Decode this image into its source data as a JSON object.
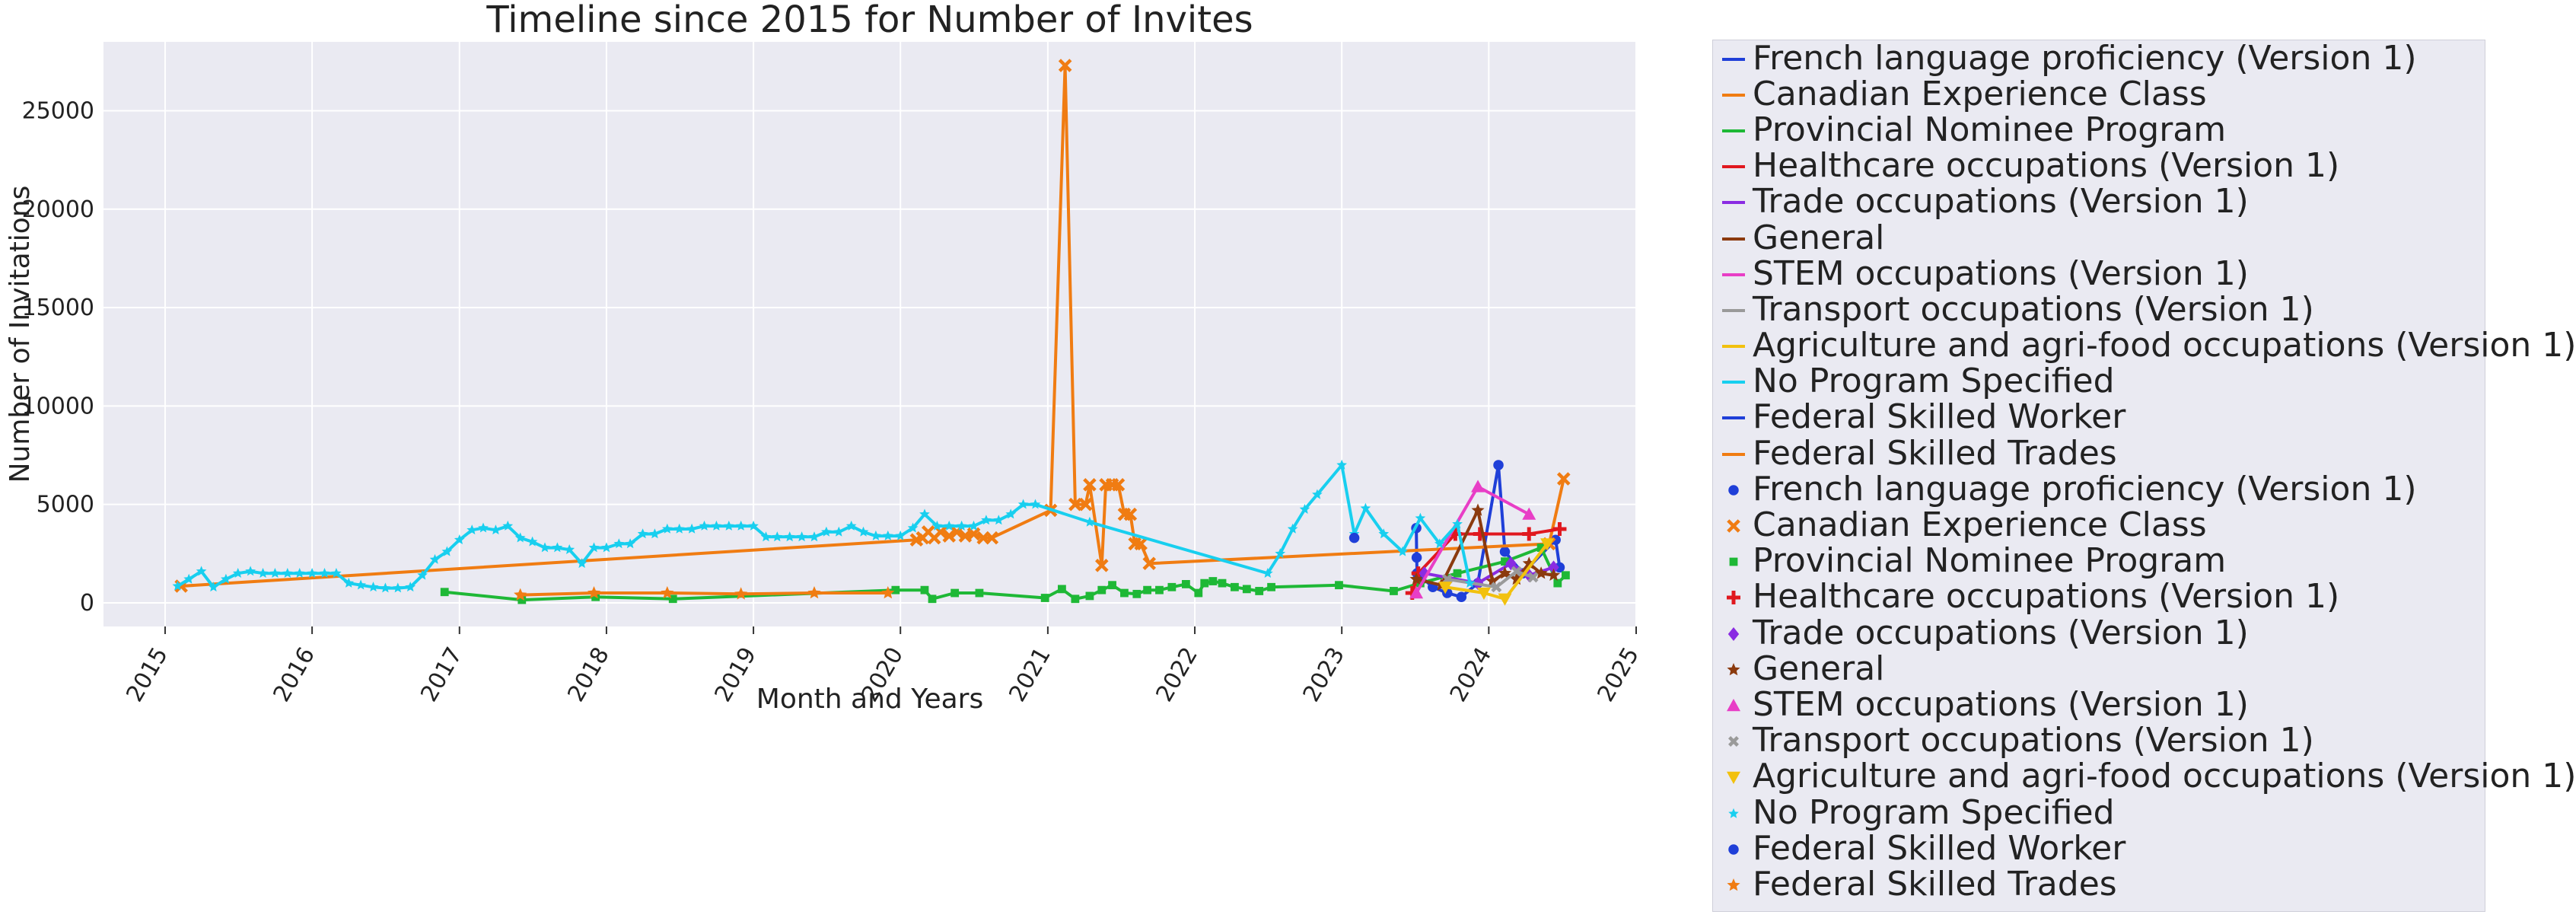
{
  "chart_data": {
    "type": "line",
    "title": "Timeline since 2015 for Number of Invites",
    "xlabel": "Month and Years",
    "ylabel": "Number of Invitations",
    "xlim": [
      "2014-08-01",
      "2025-01-01"
    ],
    "ylim": [
      -1200,
      28500
    ],
    "x_ticks": [
      "2015",
      "2016",
      "2017",
      "2018",
      "2019",
      "2020",
      "2021",
      "2022",
      "2023",
      "2024",
      "2025"
    ],
    "y_ticks": [
      0,
      5000,
      10000,
      15000,
      20000,
      25000
    ],
    "grid": true,
    "legend_placement": "outside right",
    "series": [
      {
        "name": "French language proficiency (Version 1)",
        "color": "#1f3fd8",
        "marker": "circle",
        "points": [
          [
            "2023-07-05",
            3800
          ],
          [
            "2023-07-06",
            2300
          ],
          [
            "2023-07-07",
            1500
          ],
          [
            "2023-08-15",
            800
          ],
          [
            "2023-09-20",
            500
          ],
          [
            "2023-10-25",
            300
          ],
          [
            "2023-12-05",
            1000
          ],
          [
            "2024-01-25",
            7000
          ],
          [
            "2024-02-10",
            2600
          ],
          [
            "2024-03-25",
            1500
          ],
          [
            "2024-06-15",
            3200
          ],
          [
            "2024-06-25",
            1800
          ]
        ]
      },
      {
        "name": "Canadian Experience Class",
        "color": "#f07c12",
        "marker": "x",
        "points": [
          [
            "2015-02-10",
            850
          ],
          [
            "2020-02-10",
            3200
          ],
          [
            "2020-02-25",
            3300
          ],
          [
            "2020-03-10",
            3600
          ],
          [
            "2020-03-25",
            3300
          ],
          [
            "2020-04-10",
            3600
          ],
          [
            "2020-05-01",
            3400
          ],
          [
            "2020-05-20",
            3600
          ],
          [
            "2020-06-10",
            3400
          ],
          [
            "2020-07-01",
            3500
          ],
          [
            "2020-07-25",
            3300
          ],
          [
            "2020-08-15",
            3300
          ],
          [
            "2021-01-08",
            4700
          ],
          [
            "2021-02-13",
            27300
          ],
          [
            "2021-03-10",
            5000
          ],
          [
            "2021-04-05",
            5000
          ],
          [
            "2021-04-15",
            6000
          ],
          [
            "2021-05-15",
            1900
          ],
          [
            "2021-05-25",
            6000
          ],
          [
            "2021-06-10",
            6000
          ],
          [
            "2021-06-25",
            6000
          ],
          [
            "2021-07-10",
            4500
          ],
          [
            "2021-07-25",
            4500
          ],
          [
            "2021-08-05",
            3000
          ],
          [
            "2021-08-20",
            3000
          ],
          [
            "2021-09-10",
            2000
          ],
          [
            "2024-05-30",
            3000
          ],
          [
            "2024-07-05",
            6300
          ]
        ]
      },
      {
        "name": "Provincial Nominee Program",
        "color": "#1eb836",
        "marker": "square",
        "points": [
          [
            "2016-11-25",
            550
          ],
          [
            "2017-06-05",
            150
          ],
          [
            "2017-12-05",
            300
          ],
          [
            "2018-06-15",
            200
          ],
          [
            "2019-12-20",
            650
          ],
          [
            "2020-03-01",
            650
          ],
          [
            "2020-03-20",
            200
          ],
          [
            "2020-05-15",
            500
          ],
          [
            "2020-07-15",
            500
          ],
          [
            "2020-12-25",
            250
          ],
          [
            "2021-02-05",
            700
          ],
          [
            "2021-03-10",
            200
          ],
          [
            "2021-04-15",
            350
          ],
          [
            "2021-05-15",
            650
          ],
          [
            "2021-06-10",
            900
          ],
          [
            "2021-07-10",
            500
          ],
          [
            "2021-08-10",
            450
          ],
          [
            "2021-09-05",
            650
          ],
          [
            "2021-10-05",
            650
          ],
          [
            "2021-11-05",
            800
          ],
          [
            "2021-12-10",
            950
          ],
          [
            "2022-01-10",
            500
          ],
          [
            "2022-01-25",
            1000
          ],
          [
            "2022-02-15",
            1100
          ],
          [
            "2022-03-10",
            1000
          ],
          [
            "2022-04-10",
            800
          ],
          [
            "2022-05-10",
            700
          ],
          [
            "2022-06-10",
            600
          ],
          [
            "2022-07-10",
            800
          ],
          [
            "2022-12-25",
            900
          ],
          [
            "2023-05-10",
            600
          ],
          [
            "2023-07-15",
            1000
          ],
          [
            "2023-10-15",
            1500
          ],
          [
            "2024-02-10",
            2100
          ],
          [
            "2024-05-10",
            2800
          ],
          [
            "2024-06-20",
            1000
          ],
          [
            "2024-07-10",
            1400
          ]
        ]
      },
      {
        "name": "Healthcare occupations (Version 1)",
        "color": "#e0181f",
        "marker": "plus",
        "points": [
          [
            "2023-06-25",
            500
          ],
          [
            "2023-07-10",
            1500
          ],
          [
            "2023-10-10",
            3500
          ],
          [
            "2023-12-10",
            3500
          ],
          [
            "2024-04-10",
            3500
          ],
          [
            "2024-06-25",
            3750
          ]
        ]
      },
      {
        "name": "Trade occupations (Version 1)",
        "color": "#8a2be2",
        "marker": "diamond",
        "points": [
          [
            "2023-07-25",
            1500
          ],
          [
            "2023-12-05",
            1000
          ],
          [
            "2024-02-25",
            2000
          ],
          [
            "2024-04-10",
            1400
          ],
          [
            "2024-06-10",
            1800
          ]
        ]
      },
      {
        "name": "General",
        "color": "#8b3a0e",
        "marker": "star",
        "points": [
          [
            "2023-07-05",
            1200
          ],
          [
            "2023-09-05",
            900
          ],
          [
            "2023-12-05",
            4700
          ],
          [
            "2024-01-10",
            1100
          ],
          [
            "2024-02-10",
            1500
          ],
          [
            "2024-03-10",
            1200
          ],
          [
            "2024-04-10",
            2000
          ],
          [
            "2024-05-10",
            1500
          ],
          [
            "2024-06-10",
            1400
          ]
        ]
      },
      {
        "name": "STEM occupations (Version 1)",
        "color": "#e83ec6",
        "marker": "triangle-up",
        "points": [
          [
            "2023-07-05",
            500
          ],
          [
            "2023-12-05",
            5900
          ],
          [
            "2024-04-10",
            4500
          ]
        ]
      },
      {
        "name": "Transport occupations (Version 1)",
        "color": "#9a9a9a",
        "marker": "x-small",
        "points": [
          [
            "2023-09-20",
            1200
          ],
          [
            "2024-01-20",
            800
          ],
          [
            "2024-03-10",
            1600
          ],
          [
            "2024-04-20",
            1300
          ]
        ]
      },
      {
        "name": "Agriculture and agri-food occupations (Version 1)",
        "color": "#f2c10e",
        "marker": "triangle-down",
        "points": [
          [
            "2023-09-15",
            800
          ],
          [
            "2023-12-20",
            500
          ],
          [
            "2024-02-10",
            200
          ],
          [
            "2024-05-25",
            3000
          ]
        ]
      },
      {
        "name": "No Program Specified",
        "color": "#18cfef",
        "marker": "star-small",
        "points": [
          [
            "2015-02-01",
            850
          ],
          [
            "2015-03-01",
            1200
          ],
          [
            "2015-04-01",
            1600
          ],
          [
            "2015-05-01",
            800
          ],
          [
            "2015-06-01",
            1200
          ],
          [
            "2015-07-01",
            1500
          ],
          [
            "2015-08-01",
            1600
          ],
          [
            "2015-09-01",
            1500
          ],
          [
            "2015-10-01",
            1500
          ],
          [
            "2015-11-01",
            1500
          ],
          [
            "2015-12-01",
            1500
          ],
          [
            "2016-01-01",
            1500
          ],
          [
            "2016-02-01",
            1500
          ],
          [
            "2016-03-01",
            1500
          ],
          [
            "2016-04-01",
            1000
          ],
          [
            "2016-05-01",
            900
          ],
          [
            "2016-06-01",
            800
          ],
          [
            "2016-07-01",
            750
          ],
          [
            "2016-08-01",
            750
          ],
          [
            "2016-09-01",
            800
          ],
          [
            "2016-10-01",
            1400
          ],
          [
            "2016-11-01",
            2200
          ],
          [
            "2016-12-01",
            2600
          ],
          [
            "2017-01-01",
            3200
          ],
          [
            "2017-02-01",
            3700
          ],
          [
            "2017-03-01",
            3800
          ],
          [
            "2017-04-01",
            3700
          ],
          [
            "2017-05-01",
            3900
          ],
          [
            "2017-06-01",
            3300
          ],
          [
            "2017-07-01",
            3100
          ],
          [
            "2017-08-01",
            2800
          ],
          [
            "2017-09-01",
            2800
          ],
          [
            "2017-10-01",
            2700
          ],
          [
            "2017-11-01",
            2000
          ],
          [
            "2017-12-01",
            2800
          ],
          [
            "2018-01-01",
            2800
          ],
          [
            "2018-02-01",
            3000
          ],
          [
            "2018-03-01",
            3000
          ],
          [
            "2018-04-01",
            3500
          ],
          [
            "2018-05-01",
            3500
          ],
          [
            "2018-06-01",
            3750
          ],
          [
            "2018-07-01",
            3750
          ],
          [
            "2018-08-01",
            3750
          ],
          [
            "2018-09-01",
            3900
          ],
          [
            "2018-10-01",
            3900
          ],
          [
            "2018-11-01",
            3900
          ],
          [
            "2018-12-01",
            3900
          ],
          [
            "2019-01-01",
            3900
          ],
          [
            "2019-02-01",
            3350
          ],
          [
            "2019-03-01",
            3350
          ],
          [
            "2019-04-01",
            3350
          ],
          [
            "2019-05-01",
            3350
          ],
          [
            "2019-06-01",
            3350
          ],
          [
            "2019-07-01",
            3600
          ],
          [
            "2019-08-01",
            3600
          ],
          [
            "2019-09-01",
            3900
          ],
          [
            "2019-10-01",
            3600
          ],
          [
            "2019-11-01",
            3400
          ],
          [
            "2019-12-01",
            3400
          ],
          [
            "2020-01-01",
            3400
          ],
          [
            "2020-02-01",
            3800
          ],
          [
            "2020-03-01",
            4500
          ],
          [
            "2020-04-01",
            3900
          ],
          [
            "2020-05-01",
            3900
          ],
          [
            "2020-06-01",
            3900
          ],
          [
            "2020-07-01",
            3900
          ],
          [
            "2020-08-01",
            4200
          ],
          [
            "2020-09-01",
            4200
          ],
          [
            "2020-10-01",
            4500
          ],
          [
            "2020-11-01",
            5000
          ],
          [
            "2020-12-01",
            5000
          ],
          [
            "2021-04-15",
            4100
          ],
          [
            "2022-07-01",
            1500
          ],
          [
            "2022-08-01",
            2500
          ],
          [
            "2022-09-01",
            3750
          ],
          [
            "2022-10-01",
            4750
          ],
          [
            "2022-11-01",
            5500
          ],
          [
            "2023-01-01",
            7000
          ],
          [
            "2023-02-01",
            3500
          ],
          [
            "2023-03-01",
            4800
          ],
          [
            "2023-04-15",
            3500
          ],
          [
            "2023-06-01",
            2600
          ],
          [
            "2023-07-15",
            4300
          ],
          [
            "2023-09-01",
            3000
          ],
          [
            "2023-10-15",
            4000
          ],
          [
            "2023-11-15",
            1000
          ]
        ]
      },
      {
        "name": "Federal Skilled Worker",
        "color": "#1f3fd8",
        "marker": "circle",
        "points": [
          [
            "2023-02-01",
            3300
          ]
        ]
      },
      {
        "name": "Federal Skilled Trades",
        "color": "#f07c12",
        "marker": "star",
        "points": [
          [
            "2017-06-01",
            400
          ],
          [
            "2017-12-01",
            500
          ],
          [
            "2018-06-01",
            500
          ],
          [
            "2018-12-01",
            450
          ],
          [
            "2019-06-01",
            500
          ],
          [
            "2019-12-01",
            500
          ]
        ]
      }
    ]
  }
}
